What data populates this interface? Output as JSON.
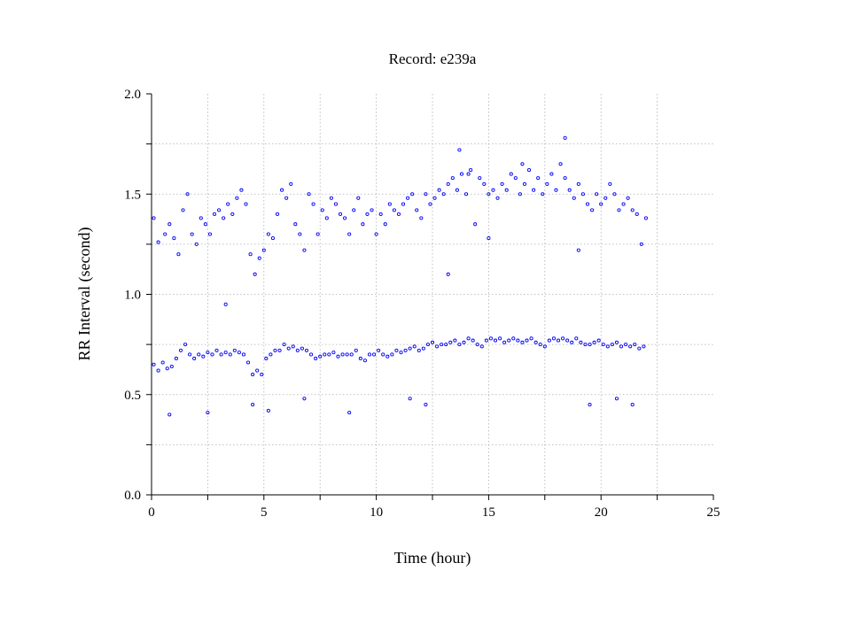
{
  "chart_data": {
    "type": "scatter",
    "title": "Record:  e239a",
    "xlabel": "Time (hour)",
    "ylabel": "RR Interval (second)",
    "xlim": [
      0,
      25
    ],
    "ylim": [
      0.0,
      2.0
    ],
    "x_ticks": [
      "0",
      "5",
      "10",
      "15",
      "20",
      "25"
    ],
    "y_ticks": [
      "0.0",
      "0.5",
      "1.0",
      "1.5",
      "2.0"
    ],
    "grid": true,
    "point_color": "#0000ff",
    "series": [
      {
        "x": [
          0.1,
          0.3,
          0.5,
          0.7,
          0.9,
          1.1,
          1.3,
          1.5,
          1.7,
          1.9,
          2.1,
          2.3,
          2.5,
          2.7,
          2.9,
          3.1,
          3.3,
          3.5,
          3.7,
          3.9,
          4.1,
          4.3,
          4.5,
          4.7,
          4.9,
          5.1,
          5.3,
          5.5,
          5.7,
          5.9,
          6.1,
          6.3,
          6.5,
          6.7,
          6.9,
          7.1,
          7.3,
          7.5,
          7.7,
          7.9,
          8.1,
          8.3,
          8.5,
          8.7,
          8.9,
          9.1,
          9.3,
          9.5,
          9.7,
          9.9,
          10.1,
          10.3,
          10.5,
          10.7,
          10.9,
          11.1,
          11.3,
          11.5,
          11.7,
          11.9,
          12.1,
          12.3,
          12.5,
          12.7,
          12.9,
          13.1,
          13.3,
          13.5,
          13.7,
          13.9,
          14.1,
          14.3,
          14.5,
          14.7,
          14.9,
          15.1,
          15.3,
          15.5,
          15.7,
          15.9,
          16.1,
          16.3,
          16.5,
          16.7,
          16.9,
          17.1,
          17.3,
          17.5,
          17.7,
          17.9,
          18.1,
          18.3,
          18.5,
          18.7,
          18.9,
          19.1,
          19.3,
          19.5,
          19.7,
          19.9,
          20.1,
          20.3,
          20.5,
          20.7,
          20.9,
          21.1,
          21.3,
          21.5,
          21.7,
          21.9
        ],
        "y": [
          0.65,
          0.62,
          0.66,
          0.63,
          0.64,
          0.68,
          0.72,
          0.75,
          0.7,
          0.68,
          0.7,
          0.69,
          0.71,
          0.7,
          0.72,
          0.7,
          0.71,
          0.7,
          0.72,
          0.71,
          0.7,
          0.66,
          0.6,
          0.62,
          0.6,
          0.68,
          0.7,
          0.72,
          0.72,
          0.75,
          0.73,
          0.74,
          0.72,
          0.73,
          0.72,
          0.7,
          0.68,
          0.69,
          0.7,
          0.7,
          0.71,
          0.69,
          0.7,
          0.7,
          0.7,
          0.72,
          0.68,
          0.67,
          0.7,
          0.7,
          0.72,
          0.7,
          0.69,
          0.7,
          0.72,
          0.71,
          0.72,
          0.73,
          0.74,
          0.72,
          0.73,
          0.75,
          0.76,
          0.74,
          0.75,
          0.75,
          0.76,
          0.77,
          0.75,
          0.76,
          0.78,
          0.77,
          0.75,
          0.74,
          0.77,
          0.78,
          0.77,
          0.78,
          0.76,
          0.77,
          0.78,
          0.77,
          0.76,
          0.77,
          0.78,
          0.76,
          0.75,
          0.74,
          0.77,
          0.78,
          0.77,
          0.78,
          0.77,
          0.76,
          0.78,
          0.76,
          0.75,
          0.75,
          0.76,
          0.77,
          0.75,
          0.74,
          0.75,
          0.76,
          0.74,
          0.75,
          0.74,
          0.75,
          0.73,
          0.74
        ]
      },
      {
        "x": [
          0.1,
          0.3,
          0.6,
          0.8,
          1.0,
          1.2,
          1.4,
          1.6,
          1.8,
          2.0,
          2.2,
          2.4,
          2.6,
          2.8,
          3.0,
          3.2,
          3.4,
          3.6,
          3.8,
          4.0,
          4.2,
          4.4,
          4.6,
          4.8,
          5.0,
          5.2,
          5.4,
          5.6,
          5.8,
          6.0,
          6.2,
          6.4,
          6.6,
          6.8,
          7.0,
          7.2,
          7.4,
          7.6,
          7.8,
          8.0,
          8.2,
          8.4,
          8.6,
          8.8,
          9.0,
          9.2,
          9.4,
          9.6,
          9.8,
          10.0,
          10.2,
          10.4,
          10.6,
          10.8,
          11.0,
          11.2,
          11.4,
          11.6,
          11.8,
          12.0,
          12.2,
          12.4,
          12.6,
          12.8,
          13.0,
          13.2,
          13.4,
          13.6,
          13.8,
          14.0,
          14.2,
          14.4,
          14.6,
          14.8,
          15.0,
          15.2,
          15.4,
          15.6,
          15.8,
          16.0,
          16.2,
          16.4,
          16.6,
          16.8,
          17.0,
          17.2,
          17.4,
          17.6,
          17.8,
          18.0,
          18.2,
          18.4,
          18.6,
          18.8,
          19.0,
          19.2,
          19.4,
          19.6,
          19.8,
          20.0,
          20.2,
          20.4,
          20.6,
          20.8,
          21.0,
          21.2,
          21.4,
          21.6,
          21.8,
          22.0
        ],
        "y": [
          1.38,
          1.26,
          1.3,
          1.35,
          1.28,
          1.2,
          1.42,
          1.5,
          1.3,
          1.25,
          1.38,
          1.35,
          1.3,
          1.4,
          1.42,
          1.38,
          1.45,
          1.4,
          1.48,
          1.52,
          1.45,
          1.2,
          1.1,
          1.18,
          1.22,
          1.3,
          1.28,
          1.4,
          1.52,
          1.48,
          1.55,
          1.35,
          1.3,
          1.22,
          1.5,
          1.45,
          1.3,
          1.42,
          1.38,
          1.48,
          1.45,
          1.4,
          1.38,
          1.3,
          1.42,
          1.48,
          1.35,
          1.4,
          1.42,
          1.3,
          1.4,
          1.35,
          1.45,
          1.42,
          1.4,
          1.45,
          1.48,
          1.5,
          1.42,
          1.38,
          1.5,
          1.45,
          1.48,
          1.52,
          1.5,
          1.55,
          1.58,
          1.52,
          1.6,
          1.5,
          1.62,
          1.35,
          1.58,
          1.55,
          1.5,
          1.52,
          1.48,
          1.55,
          1.52,
          1.6,
          1.58,
          1.5,
          1.55,
          1.62,
          1.52,
          1.58,
          1.5,
          1.55,
          1.6,
          1.52,
          1.65,
          1.58,
          1.52,
          1.48,
          1.55,
          1.5,
          1.45,
          1.42,
          1.5,
          1.45,
          1.48,
          1.55,
          1.5,
          1.42,
          1.45,
          1.48,
          1.42,
          1.4,
          1.25,
          1.38
        ]
      },
      {
        "x": [
          0.8,
          2.5,
          3.3,
          4.5,
          5.2,
          6.8,
          8.8,
          11.5,
          12.2,
          13.2,
          13.7,
          14.1,
          15.0,
          16.5,
          18.4,
          19.0,
          19.5,
          20.7,
          21.4
        ],
        "y": [
          0.4,
          0.41,
          0.95,
          0.45,
          0.42,
          0.48,
          0.41,
          0.48,
          0.45,
          1.1,
          1.72,
          1.6,
          1.28,
          1.65,
          1.78,
          1.22,
          0.45,
          0.48,
          0.45
        ]
      }
    ]
  }
}
